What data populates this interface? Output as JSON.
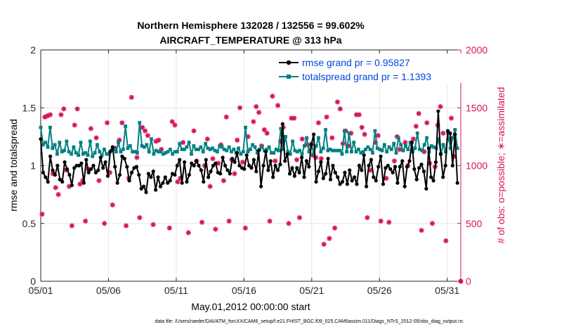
{
  "chart_data": {
    "type": "line",
    "title": "Northern Hemisphere 132028 / 132556 = 99.602%",
    "subtitle": "AIRCRAFT_TEMPERATURE @ 313 hPa",
    "xlabel": "May.01,2012 00:00:00 start",
    "ylabel": "rmse and totalspread",
    "y2label": "# of obs: o=possible; ∗=assimilated",
    "footer": "data file: /Users/raeder/DAI/ATM_forcXX/CAM6_setup/f.e21.FHIST_BGC.f09_025.CAM6assim.011/Diags_NTrS_2012-05/obs_diag_output.nc",
    "xlim": [
      1,
      32
    ],
    "ylim": [
      0,
      2
    ],
    "y2lim": [
      0,
      2000
    ],
    "grid": true,
    "legend_position": "top-right",
    "xticks": [
      1,
      6,
      11,
      16,
      21,
      26,
      31
    ],
    "xtick_labels": [
      "05/01",
      "05/06",
      "05/11",
      "05/16",
      "05/21",
      "05/26",
      "05/31"
    ],
    "yticks": [
      0,
      0.5,
      1,
      1.5,
      2
    ],
    "ytick_labels": [
      "0",
      "0.5",
      "1",
      "1.5",
      "2"
    ],
    "y2ticks": [
      0,
      500,
      1000,
      1500,
      2000
    ],
    "y2tick_labels": [
      "0",
      "500",
      "1000",
      "1500",
      "2000"
    ],
    "colors": {
      "rmse": "#000000",
      "spread": "#008080",
      "obs": "#d6145a",
      "legend_text": "#0047e0",
      "right_axis": "#d6145a"
    },
    "series": [
      {
        "name": "rmse grand pr = 0.95827",
        "key": "rmse",
        "color": "#000000",
        "values": [
          1.23,
          0.94,
          0.9,
          0.86,
          1.08,
          0.96,
          0.92,
          1.0,
          0.88,
          0.86,
          1.03,
          0.97,
          0.92,
          0.83,
          0.98,
          1.0,
          1.0,
          1.02,
          0.85,
          1.05,
          0.94,
          0.97,
          1.0,
          0.94,
          0.96,
          1.07,
          0.98,
          1.03,
          0.91,
          1.12,
          1.16,
          0.99,
          0.85,
          0.92,
          1.08,
          1.06,
          0.99,
          0.87,
          0.94,
          0.98,
          0.99,
          0.92,
          0.8,
          0.82,
          0.77,
          0.93,
          0.9,
          0.95,
          0.79,
          0.9,
          0.82,
          0.85,
          0.9,
          0.85,
          0.87,
          0.93,
          0.92,
          1.0,
          1.05,
          0.85,
          1.03,
          0.86,
          0.92,
          1.02,
          1.0,
          1.04,
          1.0,
          0.96,
          0.86,
          1.05,
          0.9,
          0.95,
          1.0,
          1.02,
          0.94,
          0.93,
          1.07,
          1.0,
          0.96,
          0.93,
          1.06,
          1.03,
          1.11,
          1.0,
          0.98,
          0.97,
          1.09,
          1.0,
          0.98,
          1.05,
          0.95,
          1.13,
          0.82,
          1.0,
          1.12,
          0.96,
          1.04,
          0.9,
          1.0,
          0.96,
          1.01,
          1.36,
          1.04,
          1.1,
          0.93,
          0.98,
          0.91,
          0.98,
          0.94,
          1.07,
          0.9,
          1.04,
          0.99,
          1.18,
          1.27,
          0.86,
          0.95,
          1.03,
          0.89,
          0.93,
          1.06,
          0.88,
          1.0,
          0.94,
          0.9,
          0.84,
          0.86,
          0.94,
          0.84,
          0.96,
          0.87,
          0.9,
          0.84,
          1.0,
          0.96,
          1.09,
          0.82,
          1.0,
          1.05,
          0.9,
          0.87,
          0.99,
          1.08,
          0.84,
          0.98,
          1.0,
          0.97,
          0.94,
          0.99,
          0.85,
          0.99,
          1.04,
          0.82,
          0.99,
          1.04,
          1.2,
          0.97,
          0.88,
          0.98,
          1.01,
          0.95,
          0.8,
          1.15,
          0.9,
          0.87,
          1.03,
          1.47,
          1.1,
          0.9,
          1.0,
          1.3,
          1.28,
          1.0,
          1.27,
          0.85
        ]
      },
      {
        "name": "totalspread grand pr = 1.1393",
        "key": "spread",
        "color": "#008080",
        "values": [
          1.33,
          1.18,
          1.2,
          1.16,
          1.33,
          1.15,
          1.18,
          1.1,
          1.2,
          1.12,
          1.13,
          1.21,
          1.12,
          1.1,
          1.16,
          1.11,
          1.09,
          1.2,
          1.1,
          1.11,
          1.09,
          1.21,
          1.08,
          1.11,
          1.18,
          1.12,
          1.09,
          1.14,
          1.1,
          1.1,
          1.13,
          1.14,
          1.12,
          1.2,
          1.12,
          1.14,
          1.34,
          1.15,
          1.17,
          1.12,
          1.12,
          1.11,
          1.37,
          1.17,
          1.16,
          1.18,
          1.12,
          1.23,
          1.1,
          1.13,
          1.12,
          1.12,
          1.1,
          1.11,
          1.12,
          1.14,
          1.1,
          1.12,
          1.12,
          1.19,
          1.14,
          1.14,
          1.16,
          1.2,
          1.1,
          1.17,
          1.14,
          1.14,
          1.16,
          1.12,
          1.19,
          1.15,
          1.14,
          1.15,
          1.13,
          1.12,
          1.17,
          1.16,
          1.14,
          1.13,
          1.16,
          1.12,
          1.14,
          1.11,
          1.15,
          1.1,
          1.12,
          1.33,
          1.12,
          1.14,
          1.18,
          1.16,
          1.11,
          1.14,
          1.16,
          1.13,
          1.14,
          1.16,
          1.11,
          1.11,
          1.14,
          1.13,
          1.32,
          1.14,
          1.25,
          1.12,
          1.1,
          1.21,
          1.13,
          1.12,
          1.13,
          1.1,
          1.17,
          1.24,
          1.12,
          1.19,
          1.1,
          1.17,
          1.24,
          1.12,
          1.15,
          1.31,
          1.13,
          1.14,
          1.13,
          1.13,
          1.13,
          1.13,
          1.1,
          1.3,
          1.12,
          1.28,
          1.12,
          1.2,
          1.12,
          1.14,
          1.11,
          1.12,
          1.14,
          1.16,
          1.14,
          1.11,
          1.3,
          1.15,
          1.14,
          1.13,
          1.18,
          1.12,
          1.16,
          1.14,
          1.19,
          1.11,
          1.24,
          1.18,
          1.13,
          1.17,
          1.14,
          1.2,
          1.12,
          1.15,
          1.28,
          1.14,
          1.13,
          1.18,
          1.24,
          1.12,
          1.17,
          1.16,
          1.15,
          1.23,
          1.1,
          1.18,
          1.12,
          1.28,
          1.15,
          1.24,
          1.31,
          1.15
        ]
      },
      {
        "name": "# of obs assimilated",
        "key": "obs",
        "color": "#d6145a",
        "points": [
          [
            1.1,
            580
          ],
          [
            1.3,
            1420
          ],
          [
            1.5,
            1430
          ],
          [
            1.7,
            1440
          ],
          [
            1.9,
            930
          ],
          [
            2.1,
            810
          ],
          [
            2.3,
            750
          ],
          [
            2.5,
            1440
          ],
          [
            2.7,
            1490
          ],
          [
            2.9,
            960
          ],
          [
            3.1,
            820
          ],
          [
            3.3,
            480
          ],
          [
            3.5,
            1350
          ],
          [
            3.7,
            1490
          ],
          [
            3.9,
            840
          ],
          [
            4.1,
            870
          ],
          [
            4.3,
            520
          ],
          [
            4.5,
            970
          ],
          [
            4.7,
            1320
          ],
          [
            5.1,
            1240
          ],
          [
            5.3,
            870
          ],
          [
            5.7,
            500
          ],
          [
            5.9,
            1370
          ],
          [
            6.1,
            940
          ],
          [
            6.3,
            660
          ],
          [
            6.5,
            1150
          ],
          [
            6.8,
            1220
          ],
          [
            7.0,
            1370
          ],
          [
            7.3,
            480
          ],
          [
            7.5,
            890
          ],
          [
            7.7,
            1590
          ],
          [
            8.1,
            1070
          ],
          [
            8.3,
            550
          ],
          [
            8.5,
            1330
          ],
          [
            8.7,
            1300
          ],
          [
            8.9,
            1260
          ],
          [
            9.3,
            490
          ],
          [
            9.5,
            1210
          ],
          [
            9.7,
            1220
          ],
          [
            9.9,
            1140
          ],
          [
            10.5,
            460
          ],
          [
            10.7,
            1380
          ],
          [
            10.9,
            1350
          ],
          [
            11.1,
            860
          ],
          [
            11.3,
            890
          ],
          [
            11.5,
            1200
          ],
          [
            11.9,
            420
          ],
          [
            12.3,
            1300
          ],
          [
            12.5,
            1040
          ],
          [
            12.9,
            510
          ],
          [
            13.1,
            1000
          ],
          [
            13.3,
            1230
          ],
          [
            13.5,
            820
          ],
          [
            13.7,
            1060
          ],
          [
            13.9,
            450
          ],
          [
            14.1,
            1020
          ],
          [
            14.3,
            1180
          ],
          [
            14.5,
            870
          ],
          [
            14.7,
            1420
          ],
          [
            14.9,
            520
          ],
          [
            15.1,
            1050
          ],
          [
            15.3,
            930
          ],
          [
            15.5,
            1220
          ],
          [
            15.7,
            1500
          ],
          [
            15.9,
            1030
          ],
          [
            16.1,
            460
          ],
          [
            16.3,
            1250
          ],
          [
            16.7,
            1380
          ],
          [
            16.9,
            1510
          ],
          [
            17.1,
            1460
          ],
          [
            17.3,
            1170
          ],
          [
            17.5,
            1310
          ],
          [
            17.7,
            1280
          ],
          [
            17.9,
            520
          ],
          [
            18.1,
            1600
          ],
          [
            18.3,
            1040
          ],
          [
            18.5,
            1520
          ],
          [
            18.7,
            1210
          ],
          [
            18.9,
            1330
          ],
          [
            19.3,
            500
          ],
          [
            19.5,
            1410
          ],
          [
            19.7,
            1410
          ],
          [
            19.9,
            1050
          ],
          [
            20.1,
            550
          ],
          [
            20.3,
            1230
          ],
          [
            20.7,
            1180
          ],
          [
            21.1,
            1090
          ],
          [
            21.3,
            1070
          ],
          [
            21.5,
            1370
          ],
          [
            21.7,
            1060
          ],
          [
            21.9,
            320
          ],
          [
            22.1,
            1420
          ],
          [
            22.3,
            370
          ],
          [
            22.5,
            1240
          ],
          [
            22.7,
            460
          ],
          [
            22.9,
            1550
          ],
          [
            23.1,
            1490
          ],
          [
            23.3,
            1190
          ],
          [
            23.5,
            1300
          ],
          [
            23.7,
            1170
          ],
          [
            23.9,
            1280
          ],
          [
            24.3,
            1440
          ],
          [
            24.5,
            1440
          ],
          [
            24.7,
            1330
          ],
          [
            24.9,
            1270
          ],
          [
            25.1,
            550
          ],
          [
            25.3,
            960
          ],
          [
            25.7,
            1200
          ],
          [
            25.9,
            1260
          ],
          [
            26.1,
            520
          ],
          [
            26.5,
            890
          ],
          [
            26.7,
            510
          ],
          [
            27.1,
            1040
          ],
          [
            27.3,
            1250
          ],
          [
            27.5,
            1140
          ],
          [
            27.9,
            1200
          ],
          [
            28.1,
            1000
          ],
          [
            28.5,
            1230
          ],
          [
            28.7,
            1340
          ],
          [
            28.9,
            1450
          ],
          [
            29.1,
            440
          ],
          [
            29.3,
            1120
          ],
          [
            29.5,
            1370
          ],
          [
            29.7,
            1020
          ],
          [
            29.9,
            500
          ],
          [
            30.1,
            990
          ],
          [
            30.3,
            1350
          ],
          [
            30.5,
            1510
          ],
          [
            30.7,
            1280
          ],
          [
            30.9,
            350
          ],
          [
            31.1,
            1230
          ],
          [
            31.3,
            1410
          ],
          [
            31.5,
            1080
          ]
        ]
      }
    ]
  }
}
